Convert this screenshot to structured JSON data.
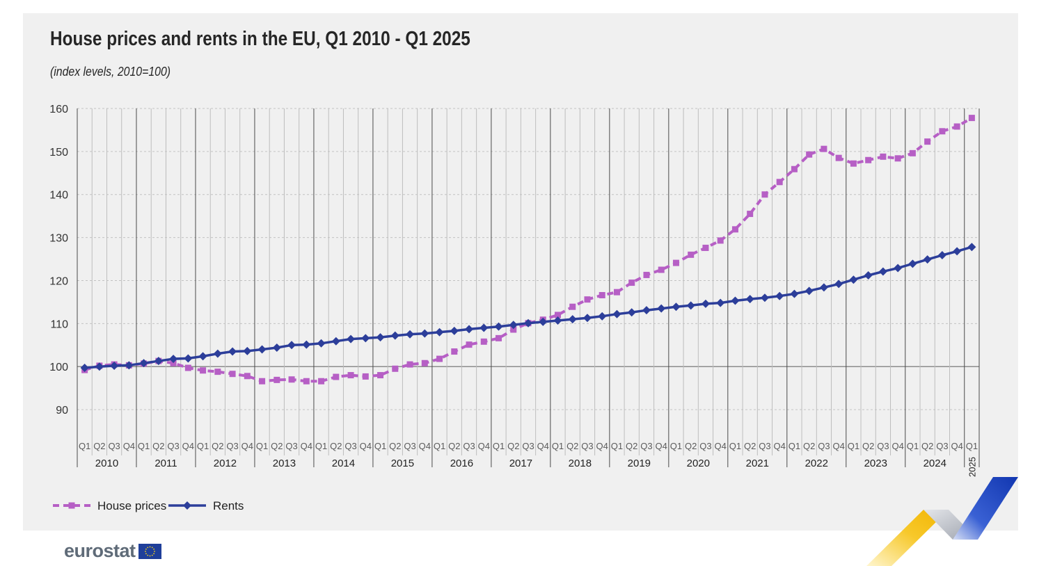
{
  "title": "House prices and rents in the EU, Q1 2010 - Q1 2025",
  "subtitle": "(index levels, 2010=100)",
  "brand": {
    "name": "eurostat"
  },
  "colors": {
    "house_prices": "#b65fc5",
    "rents": "#2c3e9a",
    "background": "#f0f0f0",
    "decor_yellow": "#f7c82a",
    "decor_blue": "#1f47c2",
    "decor_grey": "#b5b9c1"
  },
  "chart_data": {
    "type": "line",
    "title": "House prices and rents in the EU, Q1 2010 - Q1 2025",
    "subtitle": "(index levels, 2010=100)",
    "xlabel": "",
    "ylabel": "",
    "ylim": [
      85,
      160
    ],
    "yticks": [
      90,
      100,
      110,
      120,
      130,
      140,
      150,
      160
    ],
    "baseline": 100,
    "grid": true,
    "legend_position": "bottom-left",
    "quarter_labels": [
      "Q1",
      "Q2",
      "Q3",
      "Q4"
    ],
    "years": [
      "2010",
      "2011",
      "2012",
      "2013",
      "2014",
      "2015",
      "2016",
      "2017",
      "2018",
      "2019",
      "2020",
      "2021",
      "2022",
      "2023",
      "2024",
      "2025"
    ],
    "series": [
      {
        "name": "House prices",
        "marker": "square",
        "line_style": "dashed",
        "color": "#b65fc5",
        "values": [
          99.2,
          100.2,
          100.5,
          100.3,
          100.7,
          101.3,
          100.8,
          99.7,
          99.1,
          98.8,
          98.3,
          97.8,
          96.6,
          96.9,
          97.0,
          96.6,
          96.6,
          97.6,
          98.0,
          97.7,
          98.0,
          99.5,
          100.5,
          100.8,
          101.8,
          103.5,
          105.1,
          105.8,
          106.6,
          108.6,
          110.1,
          110.9,
          112.0,
          113.9,
          115.6,
          116.6,
          117.3,
          119.5,
          121.3,
          122.5,
          124.1,
          126.0,
          127.6,
          129.3,
          131.9,
          135.5,
          140.0,
          142.9,
          145.9,
          149.3,
          150.6,
          148.5,
          147.2,
          148.0,
          148.8,
          148.4,
          149.6,
          152.3,
          154.7,
          155.8,
          157.8
        ]
      },
      {
        "name": "Rents",
        "marker": "diamond",
        "line_style": "solid",
        "color": "#2c3e9a",
        "values": [
          99.7,
          100.0,
          100.2,
          100.3,
          100.8,
          101.3,
          101.8,
          101.9,
          102.4,
          103.0,
          103.5,
          103.6,
          104.0,
          104.4,
          105.0,
          105.1,
          105.4,
          105.9,
          106.4,
          106.6,
          106.8,
          107.2,
          107.5,
          107.7,
          108.0,
          108.3,
          108.7,
          109.0,
          109.3,
          109.7,
          110.1,
          110.4,
          110.7,
          111.0,
          111.3,
          111.7,
          112.2,
          112.6,
          113.1,
          113.5,
          113.9,
          114.2,
          114.6,
          114.8,
          115.3,
          115.7,
          116.0,
          116.4,
          116.9,
          117.6,
          118.4,
          119.2,
          120.2,
          121.2,
          122.1,
          122.9,
          123.9,
          124.9,
          125.9,
          126.8,
          127.8
        ]
      }
    ]
  }
}
